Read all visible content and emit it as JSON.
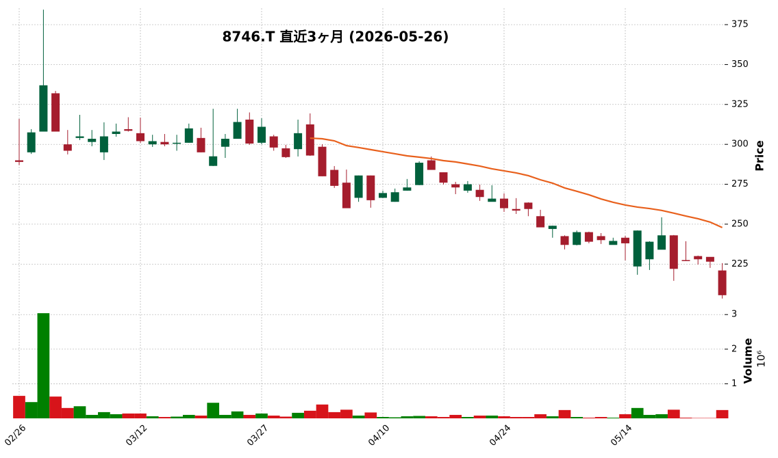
{
  "chart_data": {
    "type": "candlestick",
    "title": "8746.T 直近3ヶ月 (2026-05-26)",
    "categories": [
      "02/26",
      null,
      null,
      null,
      null,
      null,
      null,
      null,
      null,
      null,
      "03/12",
      null,
      null,
      null,
      null,
      null,
      null,
      null,
      null,
      null,
      "03/27",
      null,
      null,
      null,
      null,
      null,
      null,
      null,
      null,
      null,
      "04/10",
      null,
      null,
      null,
      null,
      null,
      null,
      null,
      null,
      null,
      "04/24",
      null,
      null,
      null,
      null,
      null,
      null,
      null,
      null,
      null,
      "05/14",
      null,
      null,
      null,
      null,
      null,
      null,
      null,
      null
    ],
    "open": [
      290,
      295,
      308,
      332,
      300,
      304,
      301.5,
      295,
      306.5,
      309.5,
      307,
      300,
      301.5,
      300.5,
      301,
      304,
      286.5,
      298.5,
      303.5,
      315.5,
      301,
      305,
      297.5,
      297,
      312.5,
      298.5,
      284,
      276,
      266.5,
      280.5,
      266.5,
      264,
      271,
      274.5,
      290,
      282.5,
      275,
      271,
      271.5,
      264,
      266,
      259.5,
      263.5,
      255,
      247,
      242.5,
      237,
      245,
      242.5,
      237,
      241.5,
      223.5,
      228,
      234,
      243,
      227.5,
      230,
      229.5,
      221
    ],
    "high": [
      316,
      309.5,
      384.4,
      333.5,
      309,
      318.5,
      309,
      313.8,
      313,
      317,
      316.8,
      306,
      306.5,
      306,
      313,
      310.4,
      322.3,
      306.5,
      322.3,
      320,
      316.4,
      306,
      299.7,
      315.5,
      319.4,
      300,
      286.4,
      284.2,
      280.5,
      280.5,
      271,
      272.3,
      278.3,
      289.4,
      292.4,
      282.5,
      276.5,
      277,
      274.8,
      274.4,
      269.3,
      266.3,
      263.7,
      259,
      249.1,
      243,
      246,
      245.3,
      244.4,
      241.5,
      242.7,
      246.1,
      239.3,
      254.3,
      243.2,
      239.3,
      230.3,
      229.4,
      225.6
    ],
    "low": [
      287,
      294,
      308,
      308,
      293.7,
      302.7,
      298.8,
      290.2,
      304.8,
      308,
      300.9,
      298.4,
      298.8,
      296,
      301,
      295,
      286.4,
      291.5,
      303.5,
      299.7,
      300,
      296,
      291.5,
      292.4,
      292.8,
      280,
      272.7,
      260.3,
      264,
      260.3,
      266.3,
      264,
      271,
      274.4,
      284.2,
      274.8,
      268.8,
      269.7,
      264.6,
      264.1,
      257.7,
      256.4,
      255,
      248.3,
      241.5,
      234.2,
      236.7,
      238,
      237.6,
      237.2,
      227.3,
      218.3,
      221.3,
      234.2,
      214.5,
      227,
      224.7,
      222.6,
      203.4
    ],
    "close": [
      289,
      307.5,
      337,
      308,
      296,
      305,
      303.5,
      305,
      308,
      308.5,
      302,
      302,
      300,
      301,
      310,
      295,
      292.5,
      303.5,
      314,
      300.5,
      311,
      298,
      292,
      307,
      293,
      280,
      274,
      260,
      280.5,
      265,
      269.5,
      270,
      273,
      288.5,
      284,
      276,
      273,
      275,
      267,
      266,
      260,
      258.5,
      259.5,
      248,
      249,
      237,
      245,
      239,
      240,
      239.5,
      238,
      246,
      239,
      243,
      222,
      227,
      228,
      226.5,
      205.5
    ],
    "up_color": "#00603c",
    "down_color": "#a51d2d",
    "ma": {
      "color": "#e8601c",
      "values": [
        null,
        null,
        null,
        null,
        null,
        null,
        null,
        null,
        null,
        null,
        null,
        null,
        null,
        null,
        null,
        null,
        null,
        null,
        null,
        null,
        null,
        null,
        null,
        null,
        303.9,
        303.5,
        302.2,
        299.2,
        298,
        296.7,
        295.4,
        294.1,
        292.8,
        292,
        291.1,
        289.8,
        289,
        287.7,
        286.4,
        284.7,
        283.4,
        282.1,
        280.4,
        277.8,
        275.7,
        272.7,
        270.6,
        268.4,
        265.8,
        263.7,
        262,
        260.7,
        259.8,
        258.6,
        256.9,
        255.1,
        253.4,
        251.3,
        247.9
      ]
    },
    "ylabel": "Price",
    "ylim": [
      202,
      385.3
    ],
    "yticks": [
      225,
      250,
      275,
      300,
      325,
      350,
      375
    ],
    "volume": {
      "ylabel": "Volume",
      "offset_label": "10⁶",
      "ylim": [
        0,
        3.3
      ],
      "yticks": [
        1,
        2,
        3
      ],
      "up_color": "#008000",
      "down_color": "#d7141a",
      "values": [
        0.65,
        0.47,
        3.04,
        0.63,
        0.3,
        0.35,
        0.1,
        0.18,
        0.12,
        0.14,
        0.14,
        0.06,
        0.04,
        0.05,
        0.1,
        0.08,
        0.45,
        0.1,
        0.2,
        0.1,
        0.14,
        0.08,
        0.05,
        0.16,
        0.22,
        0.4,
        0.18,
        0.25,
        0.08,
        0.17,
        0.04,
        0.03,
        0.06,
        0.07,
        0.06,
        0.04,
        0.1,
        0.04,
        0.08,
        0.08,
        0.06,
        0.04,
        0.04,
        0.12,
        0.06,
        0.24,
        0.04,
        0.02,
        0.04,
        0.02,
        0.12,
        0.3,
        0.1,
        0.12,
        0.25,
        0.02,
        0.01,
        0.01,
        0.24
      ]
    },
    "grid": true
  }
}
